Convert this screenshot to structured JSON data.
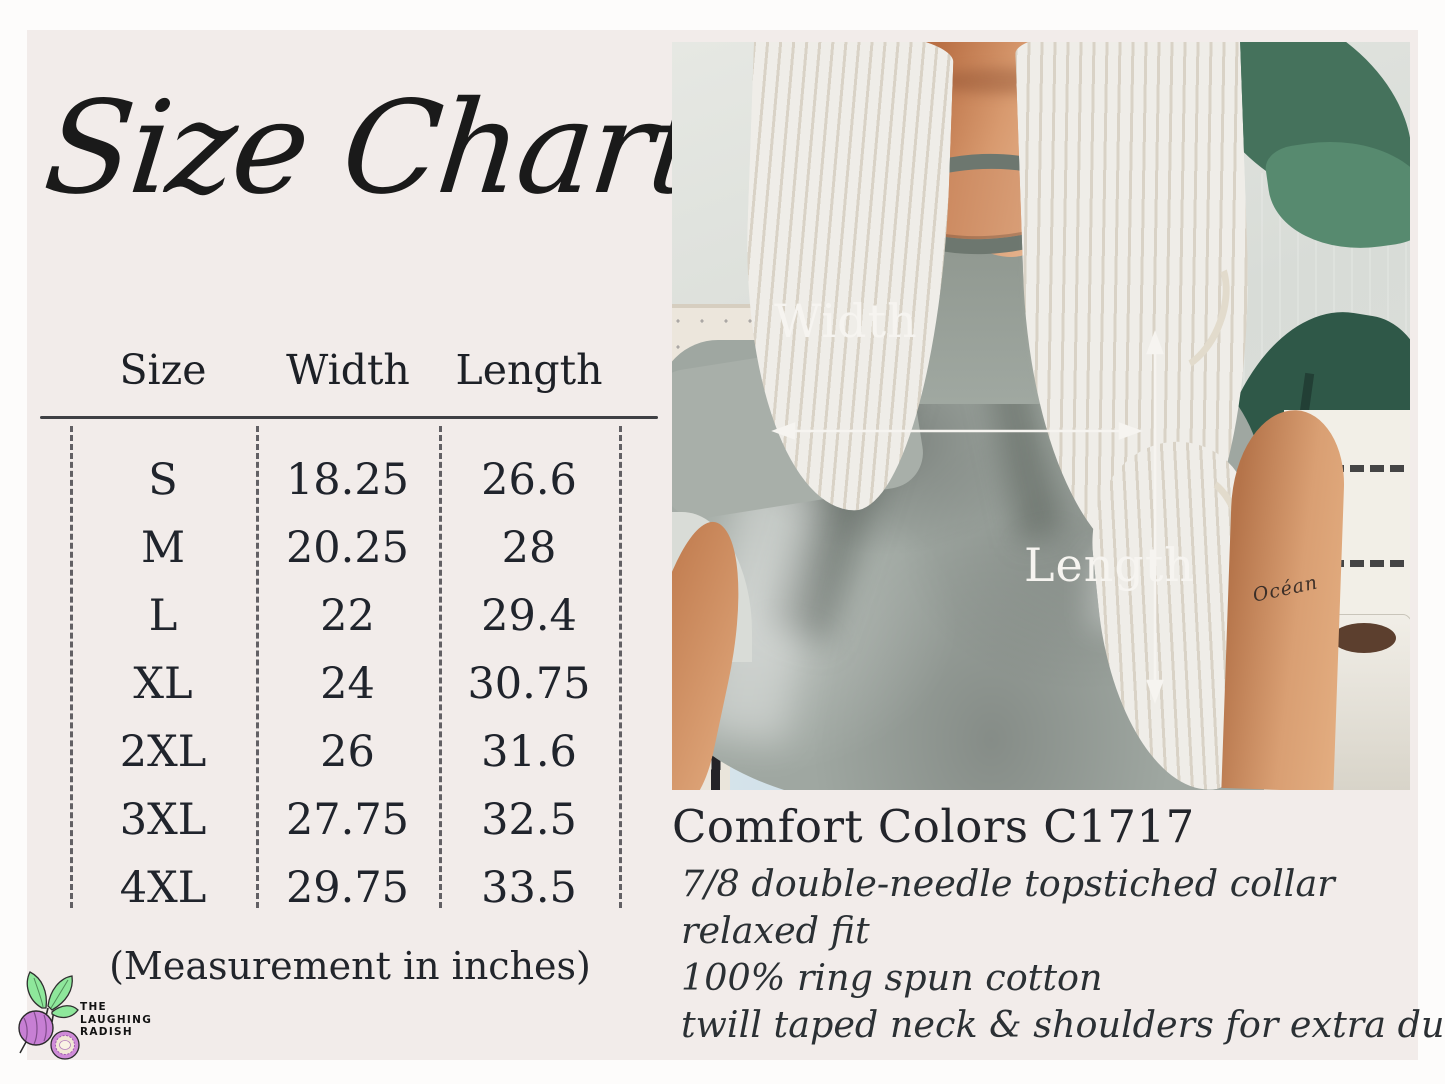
{
  "title": "Size Chart",
  "chart_data": {
    "type": "table",
    "title": "Size Chart",
    "columns": [
      "Size",
      "Width",
      "Length"
    ],
    "rows": [
      [
        "S",
        "18.25",
        "26.6"
      ],
      [
        "M",
        "20.25",
        "28"
      ],
      [
        "L",
        "22",
        "29.4"
      ],
      [
        "XL",
        "24",
        "30.75"
      ],
      [
        "2XL",
        "26",
        "31.6"
      ],
      [
        "3XL",
        "27.75",
        "32.5"
      ],
      [
        "4XL",
        "29.75",
        "33.5"
      ]
    ],
    "note": "(Measurement in inches)",
    "units": "inches"
  },
  "photo": {
    "width_label": "Width",
    "length_label": "Length",
    "tattoo_text": "Océan"
  },
  "product": {
    "heading": "Comfort Colors C1717",
    "details": [
      "7/8 double-needle topstiched collar",
      "relaxed fit",
      "100% ring spun cotton",
      "twill taped neck & shoulders for extra durability"
    ]
  },
  "logo": {
    "lines": [
      "THE",
      "LAUGHING",
      "RADISH"
    ]
  },
  "colors": {
    "card_bg": "#f2ecea",
    "table_text": "#20242c",
    "shirt_grey": "#9fa7a1",
    "leaf_green": "#3c6752",
    "logo_purple": "#c77fd4",
    "logo_leaf_green": "#8ee79b",
    "arrow_white": "#f6f4f0"
  }
}
